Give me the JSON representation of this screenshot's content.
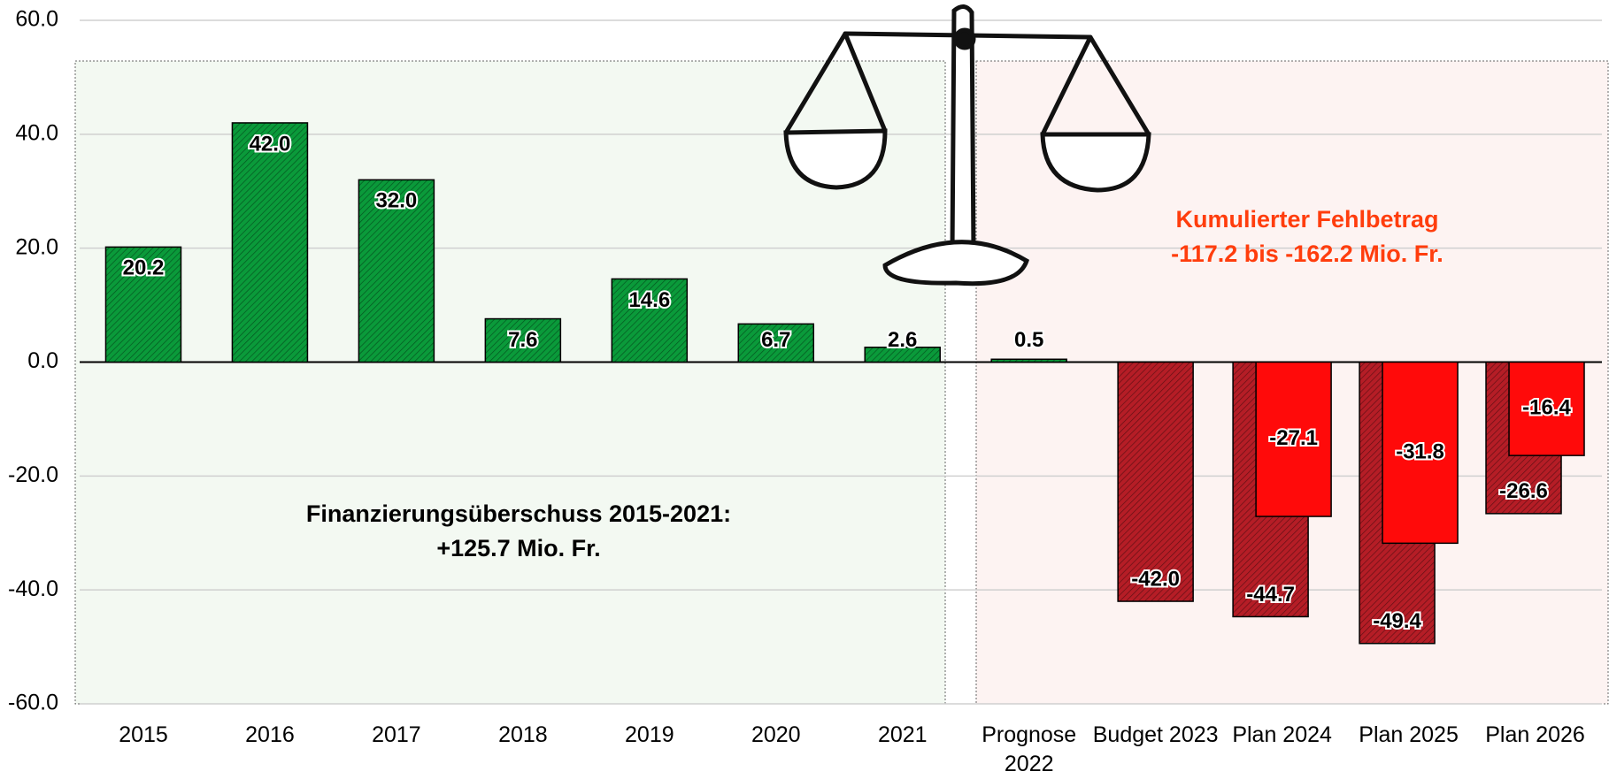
{
  "chart_data": {
    "type": "bar",
    "categories": [
      "2015",
      "2016",
      "2017",
      "2018",
      "2019",
      "2020",
      "2021",
      "Prognose\n2022",
      "Budget 2023",
      "Plan 2024",
      "Plan 2025",
      "Plan 2026"
    ],
    "series": [
      {
        "color": "#0a9a3a",
        "negative_color": "#b51d26",
        "values": [
          20.2,
          42.0,
          32.0,
          7.6,
          14.6,
          6.7,
          2.6,
          0.5,
          -42.0,
          -44.7,
          -49.4,
          -26.6
        ],
        "value_labels": [
          "20.2",
          "42.0",
          "32.0",
          "7.6",
          "14.6",
          "6.7",
          "2.6",
          "0.5",
          "-42.0",
          "-44.7",
          "-49.4",
          "-26.6"
        ]
      },
      {
        "color": "#ff0a0a",
        "values": [
          null,
          null,
          null,
          null,
          null,
          null,
          null,
          null,
          null,
          -27.1,
          -31.8,
          -16.4
        ],
        "value_labels": [
          null,
          null,
          null,
          null,
          null,
          null,
          null,
          null,
          null,
          "-27.1",
          "-31.8",
          "-16.4"
        ]
      }
    ],
    "ylim": [
      -60,
      60
    ],
    "yticks": [
      {
        "value": -60,
        "label": "-60.0"
      },
      {
        "value": -40,
        "label": "-40.0"
      },
      {
        "value": -20,
        "label": "-20.0"
      },
      {
        "value": 0,
        "label": "0.0"
      },
      {
        "value": 20,
        "label": "20.0"
      },
      {
        "value": 40,
        "label": "40.0"
      },
      {
        "value": 60,
        "label": "60.0"
      }
    ],
    "grid": true,
    "annotations": [
      {
        "lines": [
          "Finanzierungsüberschuss 2015-2021:",
          "+125.7 Mio. Fr."
        ],
        "color": "#000000"
      },
      {
        "lines": [
          "Kumulierter Fehlbetrag",
          "-117.2 bis -162.2 Mio. Fr."
        ],
        "color": "#ff3d0d"
      }
    ]
  }
}
